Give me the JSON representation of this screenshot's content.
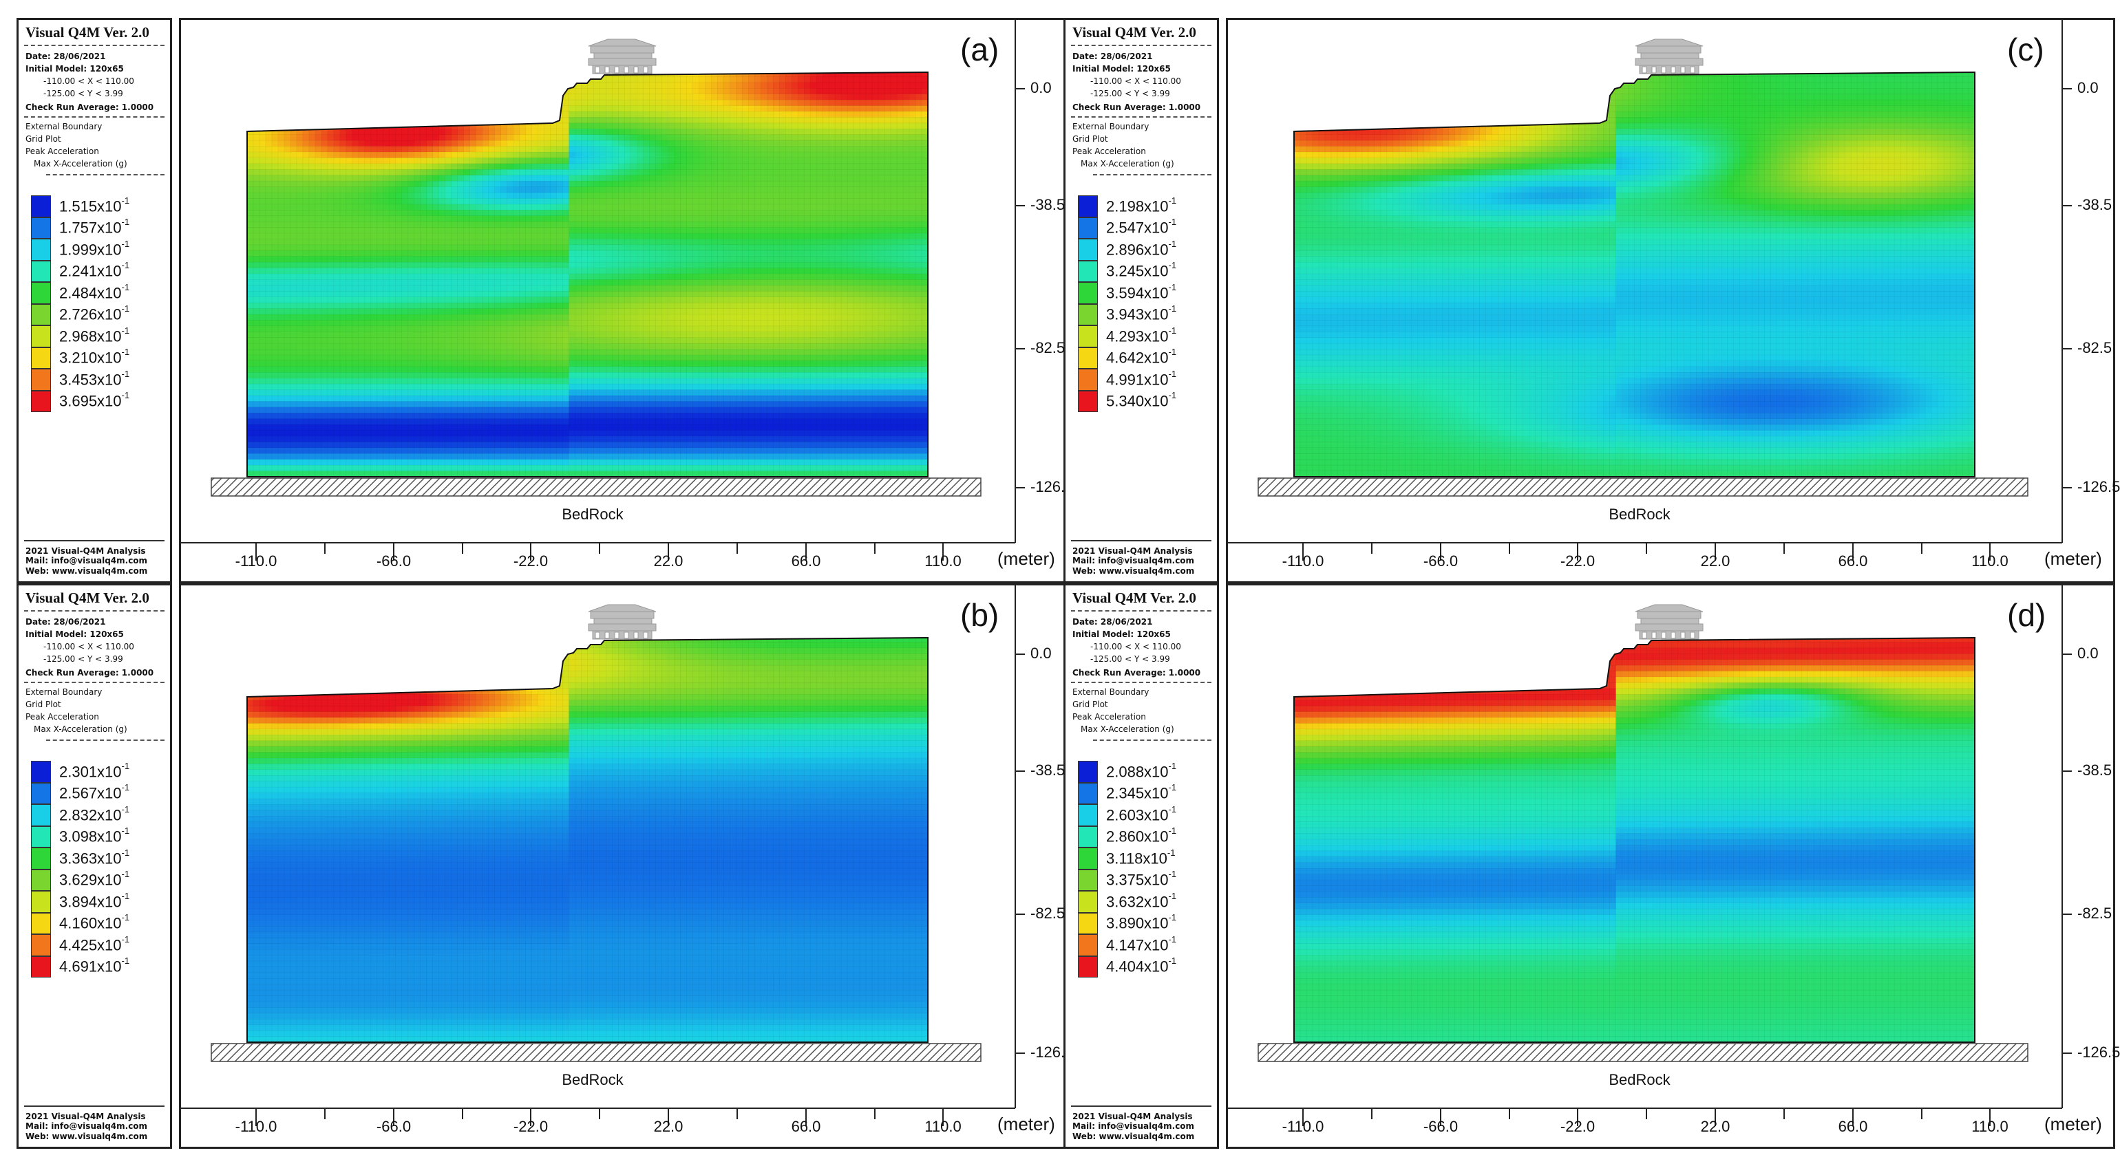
{
  "app_title": "Visual Q4M Ver. 2.0",
  "date": "Date: 28/06/2021",
  "initial_model": "Initial Model: 120x65",
  "x_range": "-110.00 < X < 110.00",
  "y_range": "-125.00 < Y < 3.99",
  "check_run": "Check Run Average: 1.0000",
  "external_boundary": "External Boundary",
  "grid_plot": "Grid Plot",
  "peak_acceleration": "Peak Acceleration",
  "max_x_acc": "Max X-Acceleration (g)",
  "footer": {
    "line1": "2021 Visual-Q4M Analysis",
    "line2": "Mail: info@visualq4m.com",
    "line3": "Web: www.visualq4m.com"
  },
  "axis": {
    "x_ticks": [
      "-110.0",
      "-66.0",
      "-22.0",
      "22.0",
      "66.0",
      "110.0"
    ],
    "y_ticks": [
      "0.0",
      "-38.5",
      "-82.5",
      "-126.5"
    ],
    "unit": "(meter)",
    "bedrock": "BedRock"
  },
  "colors": [
    "#0b1fd6",
    "#1476e6",
    "#19cfe8",
    "#22e6b6",
    "#2ed63a",
    "#7ad62e",
    "#c8e21e",
    "#f6d713",
    "#f2761b",
    "#e8141e"
  ],
  "panels": [
    {
      "id": "a",
      "letter": "(a)",
      "values": [
        "1.515",
        "1.757",
        "1.999",
        "2.241",
        "2.484",
        "2.726",
        "2.968",
        "3.210",
        "3.453",
        "3.695"
      ]
    },
    {
      "id": "b",
      "letter": "(b)",
      "values": [
        "2.301",
        "2.567",
        "2.832",
        "3.098",
        "3.363",
        "3.629",
        "3.894",
        "4.160",
        "4.425",
        "4.691"
      ]
    },
    {
      "id": "c",
      "letter": "(c)",
      "values": [
        "2.198",
        "2.547",
        "2.896",
        "3.245",
        "3.594",
        "3.943",
        "4.293",
        "4.642",
        "4.991",
        "5.340"
      ]
    },
    {
      "id": "d",
      "letter": "(d)",
      "values": [
        "2.088",
        "2.345",
        "2.603",
        "2.860",
        "3.118",
        "3.375",
        "3.632",
        "3.890",
        "4.147",
        "4.404"
      ]
    }
  ],
  "exponent_suffix": "x10",
  "exponent": "-1"
}
